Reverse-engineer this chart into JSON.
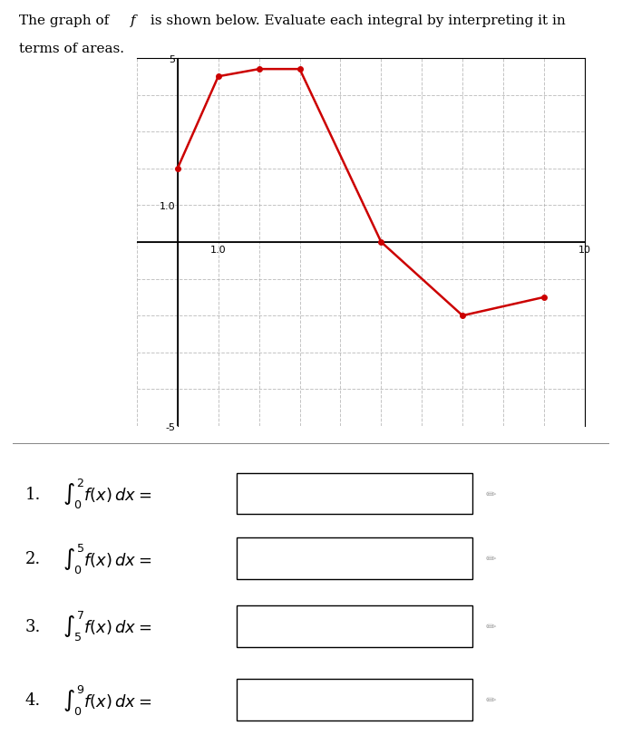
{
  "title": "The graph of f is shown below. Evaluate each integral by interpreting it in\nterms of areas.",
  "graph_x_data": [
    0,
    1,
    2,
    3,
    5,
    7,
    9
  ],
  "graph_y_data": [
    2,
    4.5,
    4.7,
    4.7,
    0,
    -2,
    -1.5
  ],
  "xlim": [
    -1,
    10
  ],
  "ylim": [
    -5,
    5
  ],
  "x_ticks": [
    -1,
    0,
    1,
    2,
    3,
    4,
    5,
    6,
    7,
    8,
    9,
    10
  ],
  "y_ticks": [
    -5,
    -4,
    -3,
    -2,
    -1,
    0,
    1,
    2,
    3,
    4,
    5
  ],
  "x_tick_labels_show": {
    "1": "1.0",
    "10": "10"
  },
  "y_tick_labels_show": {
    "1": "1.0",
    "5": "5",
    "-5": "-5"
  },
  "line_color": "#cc0000",
  "line_width": 1.8,
  "marker": "o",
  "marker_size": 4,
  "grid_color": "#aaaaaa",
  "grid_style": "--",
  "grid_alpha": 0.7,
  "bg_color": "#ffffff",
  "integrals": [
    {
      "num": "1",
      "lower": "0",
      "upper": "2",
      "expr": "f(x)\\,dx"
    },
    {
      "num": "2",
      "lower": "0",
      "upper": "5",
      "expr": "f(x)\\,dx"
    },
    {
      "num": "3",
      "lower": "5",
      "upper": "7",
      "expr": "f(x)\\,dx"
    },
    {
      "num": "4",
      "lower": "0",
      "upper": "9",
      "expr": "f(x)\\,dx"
    }
  ],
  "fig_width": 6.86,
  "fig_height": 8.12,
  "dpi": 100
}
